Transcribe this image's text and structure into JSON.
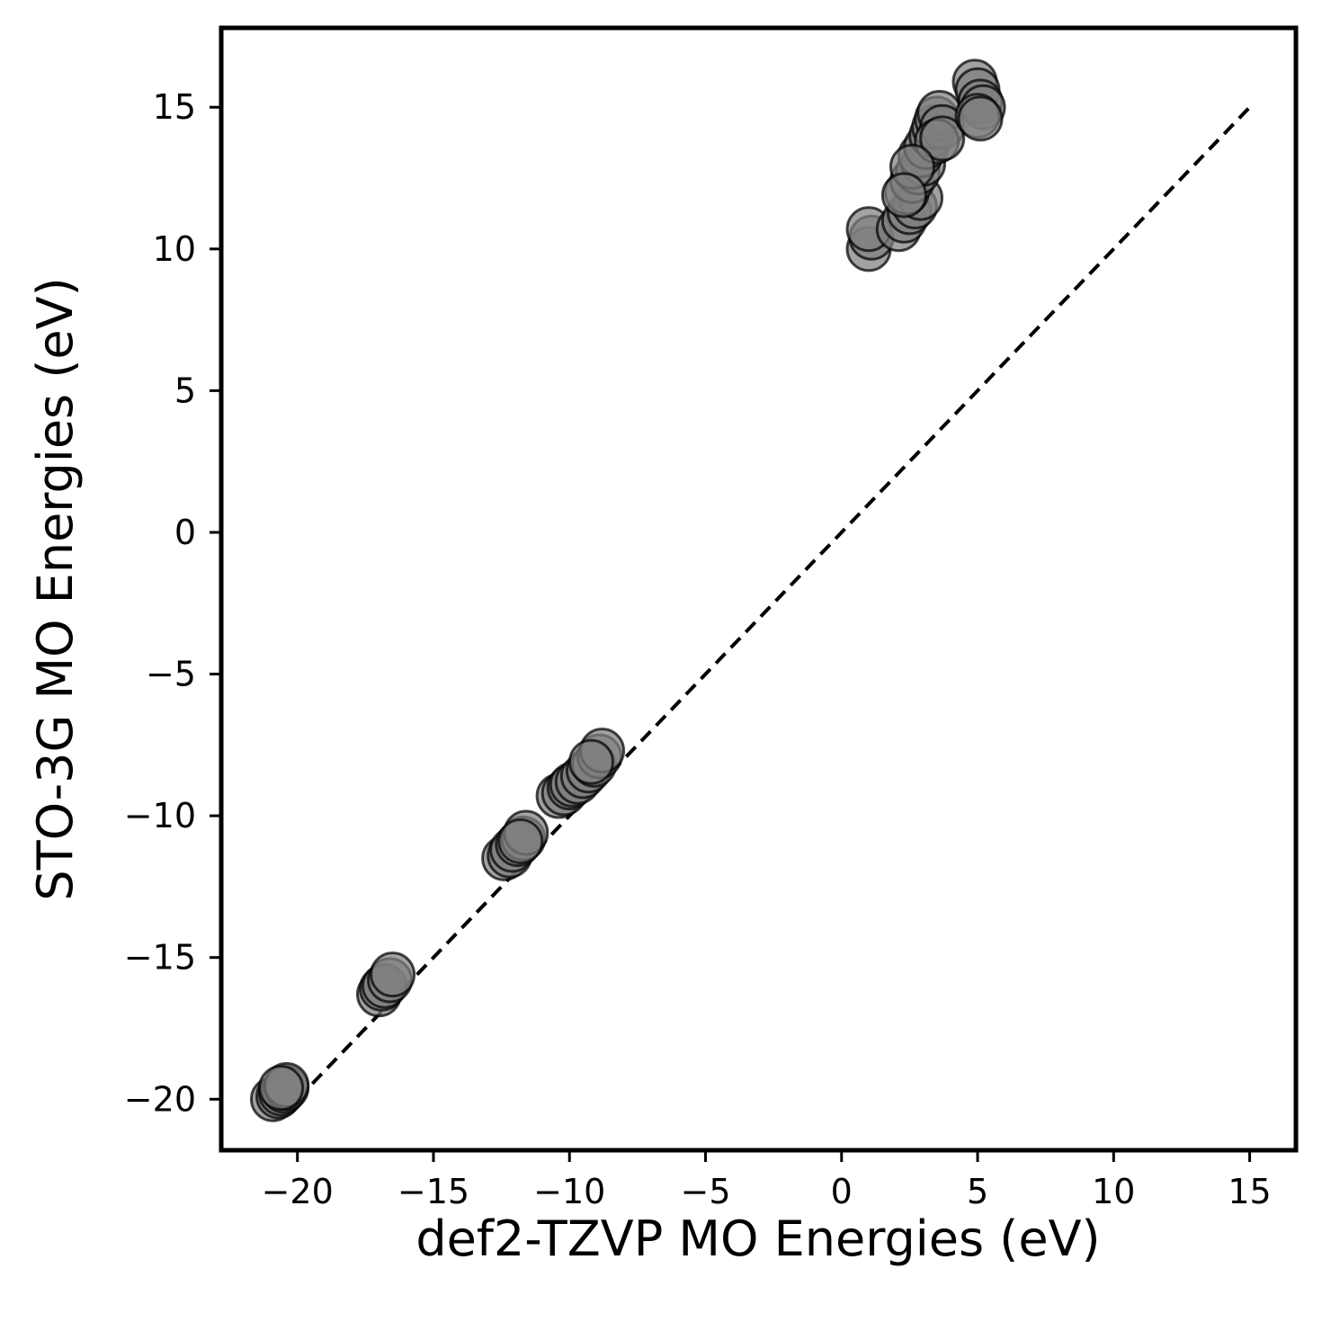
{
  "chart_data": {
    "type": "scatter",
    "title": "",
    "xlabel": "def2-TZVP MO Energies (eV)",
    "ylabel": "STO-3G MO Energies (eV)",
    "xlim": [
      -22.8,
      16.7
    ],
    "ylim": [
      -21.8,
      17.8
    ],
    "xticks": [
      -20,
      -15,
      -10,
      -5,
      0,
      5,
      10,
      15
    ],
    "yticks": [
      -20,
      -15,
      -10,
      -5,
      0,
      5,
      10,
      15
    ],
    "xtick_labels": [
      "−20",
      "−15",
      "−10",
      "−5",
      "0",
      "5",
      "10",
      "15"
    ],
    "ytick_labels": [
      "−20",
      "−15",
      "−10",
      "−5",
      "0",
      "5",
      "10",
      "15"
    ],
    "grid": false,
    "marker_color": "#808080",
    "marker_edge_color": "#000000",
    "reference_line": {
      "style": "dashed",
      "color": "#000000",
      "x": [
        -20,
        15
      ],
      "y": [
        -20,
        15
      ]
    },
    "points": [
      {
        "x": -20.9,
        "y": -20.0
      },
      {
        "x": -20.7,
        "y": -19.9
      },
      {
        "x": -20.6,
        "y": -19.8
      },
      {
        "x": -20.5,
        "y": -19.7
      },
      {
        "x": -20.4,
        "y": -19.6
      },
      {
        "x": -20.4,
        "y": -19.5
      },
      {
        "x": -20.6,
        "y": -19.6
      },
      {
        "x": -17.0,
        "y": -16.3
      },
      {
        "x": -16.9,
        "y": -16.1
      },
      {
        "x": -16.8,
        "y": -16.0
      },
      {
        "x": -16.6,
        "y": -15.8
      },
      {
        "x": -16.5,
        "y": -15.6
      },
      {
        "x": -12.4,
        "y": -11.5
      },
      {
        "x": -12.2,
        "y": -11.4
      },
      {
        "x": -12.1,
        "y": -11.2
      },
      {
        "x": -11.9,
        "y": -11.0
      },
      {
        "x": -11.7,
        "y": -10.8
      },
      {
        "x": -11.6,
        "y": -10.6
      },
      {
        "x": -11.8,
        "y": -10.9
      },
      {
        "x": -10.4,
        "y": -9.3
      },
      {
        "x": -10.2,
        "y": -9.2
      },
      {
        "x": -10.0,
        "y": -9.0
      },
      {
        "x": -9.9,
        "y": -8.9
      },
      {
        "x": -9.7,
        "y": -8.8
      },
      {
        "x": -9.5,
        "y": -8.6
      },
      {
        "x": -9.3,
        "y": -8.4
      },
      {
        "x": -9.1,
        "y": -8.2
      },
      {
        "x": -8.9,
        "y": -7.9
      },
      {
        "x": -8.8,
        "y": -7.7
      },
      {
        "x": -9.2,
        "y": -8.1
      },
      {
        "x": 1.0,
        "y": 10.0
      },
      {
        "x": 1.1,
        "y": 10.4
      },
      {
        "x": 1.0,
        "y": 10.7
      },
      {
        "x": 2.1,
        "y": 10.7
      },
      {
        "x": 2.3,
        "y": 11.0
      },
      {
        "x": 2.5,
        "y": 11.3
      },
      {
        "x": 2.7,
        "y": 11.5
      },
      {
        "x": 2.9,
        "y": 11.8
      },
      {
        "x": 2.4,
        "y": 12.0
      },
      {
        "x": 2.6,
        "y": 12.4
      },
      {
        "x": 2.8,
        "y": 12.7
      },
      {
        "x": 3.0,
        "y": 13.0
      },
      {
        "x": 2.9,
        "y": 13.3
      },
      {
        "x": 3.1,
        "y": 13.6
      },
      {
        "x": 3.3,
        "y": 14.0
      },
      {
        "x": 3.4,
        "y": 14.3
      },
      {
        "x": 3.5,
        "y": 14.6
      },
      {
        "x": 3.6,
        "y": 14.8
      },
      {
        "x": 3.7,
        "y": 14.3
      },
      {
        "x": 3.5,
        "y": 13.8
      },
      {
        "x": 3.7,
        "y": 13.9
      },
      {
        "x": 2.6,
        "y": 12.9
      },
      {
        "x": 2.3,
        "y": 11.9
      },
      {
        "x": 4.9,
        "y": 15.9
      },
      {
        "x": 5.0,
        "y": 15.6
      },
      {
        "x": 5.1,
        "y": 15.2
      },
      {
        "x": 5.2,
        "y": 15.0
      },
      {
        "x": 5.0,
        "y": 14.7
      },
      {
        "x": 5.1,
        "y": 14.6
      }
    ]
  }
}
